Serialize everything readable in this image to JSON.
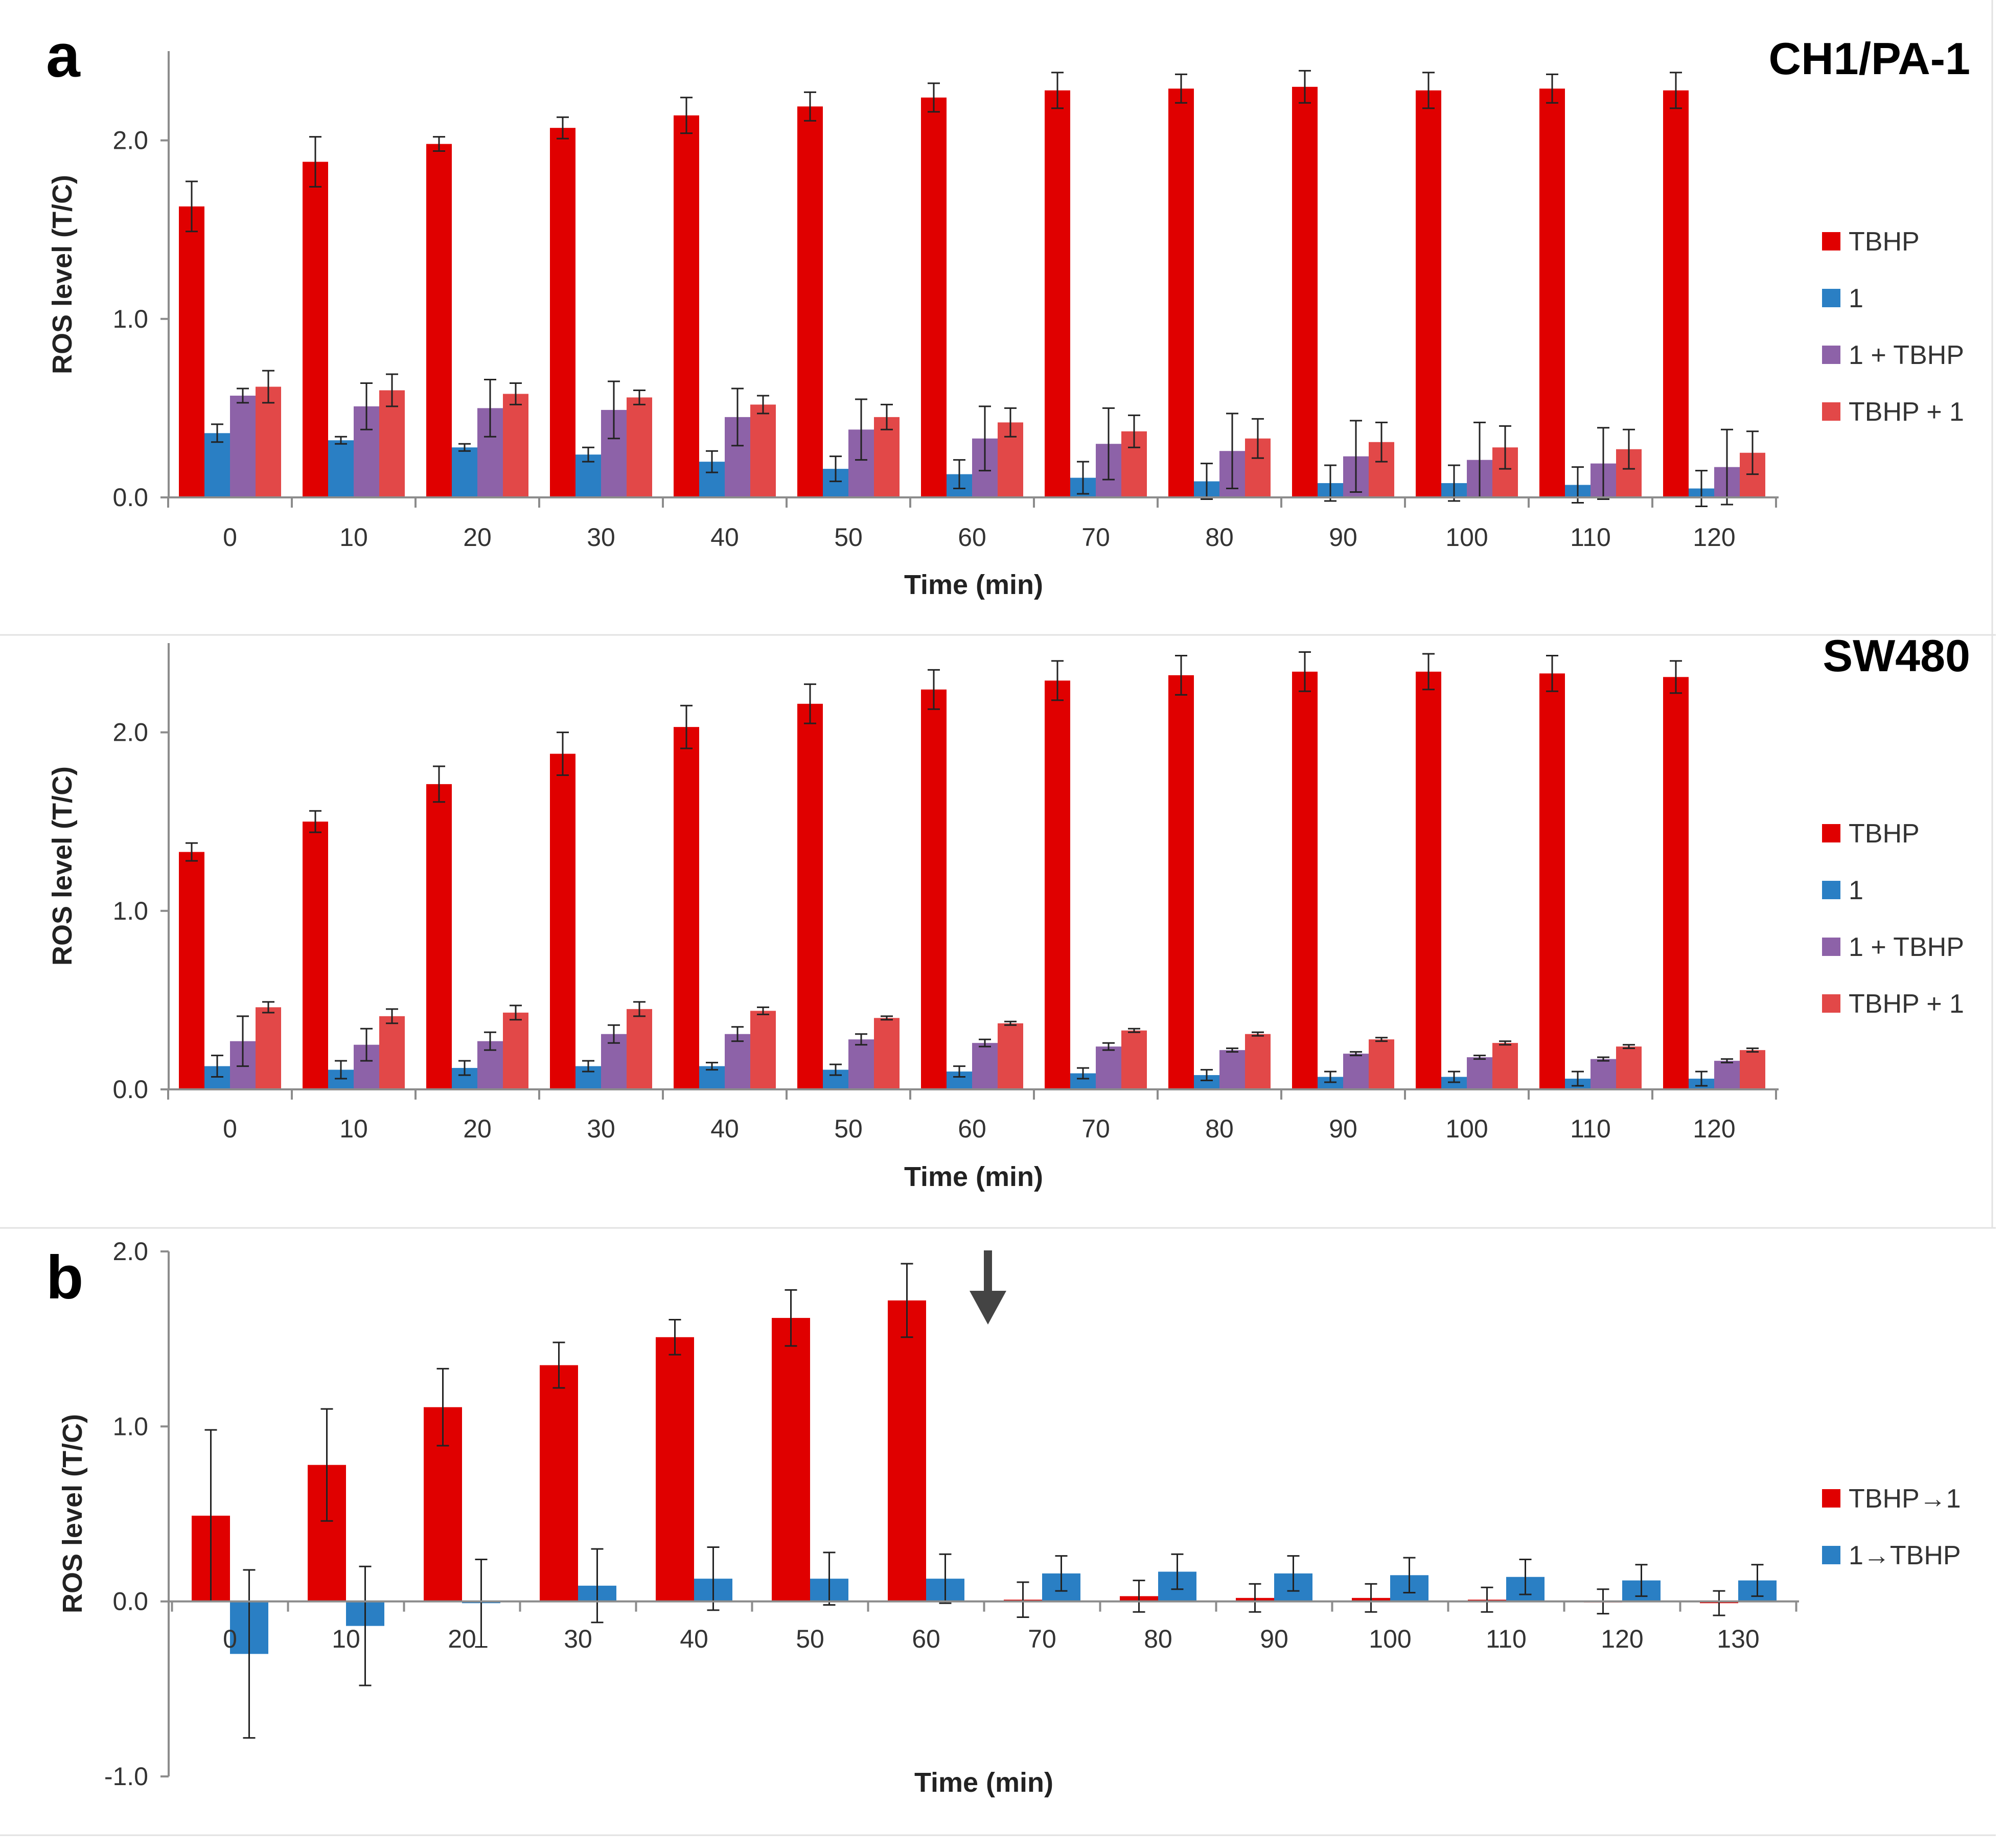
{
  "figure": {
    "panel_a_letter": "a",
    "panel_b_letter": "b"
  },
  "colors": {
    "TBHP": "#e00000",
    "1": "#2a7fc4",
    "1 + TBHP": "#8d62a8",
    "TBHP + 1": "#e24848",
    "TBHP→1": "#e00000",
    "1→TBHP": "#2a7fc4"
  },
  "chart_data": [
    {
      "type": "bar",
      "panel": "a",
      "title": "CH1/PA-1",
      "xlabel": "Time (min)",
      "ylabel": "ROS level (T/C)",
      "ylim": [
        0,
        2.5
      ],
      "yticks": [
        0.0,
        1.0,
        2.0
      ],
      "ytick_labels": [
        "0.0",
        "1.0",
        "2.0"
      ],
      "grid": false,
      "legend_position": "right",
      "categories": [
        "0",
        "10",
        "20",
        "30",
        "40",
        "50",
        "60",
        "70",
        "80",
        "90",
        "100",
        "110",
        "120"
      ],
      "series": [
        {
          "name": "TBHP",
          "values": [
            1.63,
            1.88,
            1.98,
            2.07,
            2.14,
            2.19,
            2.24,
            2.28,
            2.29,
            2.3,
            2.28,
            2.29,
            2.28
          ],
          "errors": [
            0.14,
            0.14,
            0.04,
            0.06,
            0.1,
            0.08,
            0.08,
            0.1,
            0.08,
            0.09,
            0.1,
            0.08,
            0.1
          ]
        },
        {
          "name": "1",
          "values": [
            0.36,
            0.32,
            0.28,
            0.24,
            0.2,
            0.16,
            0.13,
            0.11,
            0.09,
            0.08,
            0.08,
            0.07,
            0.05
          ],
          "errors": [
            0.05,
            0.02,
            0.02,
            0.04,
            0.06,
            0.07,
            0.08,
            0.09,
            0.1,
            0.1,
            0.1,
            0.1,
            0.1
          ]
        },
        {
          "name": "1 + TBHP",
          "values": [
            0.57,
            0.51,
            0.5,
            0.49,
            0.45,
            0.38,
            0.33,
            0.3,
            0.26,
            0.23,
            0.21,
            0.19,
            0.17
          ],
          "errors": [
            0.04,
            0.13,
            0.16,
            0.16,
            0.16,
            0.17,
            0.18,
            0.2,
            0.21,
            0.2,
            0.21,
            0.2,
            0.21
          ]
        },
        {
          "name": "TBHP + 1",
          "values": [
            0.62,
            0.6,
            0.58,
            0.56,
            0.52,
            0.45,
            0.42,
            0.37,
            0.33,
            0.31,
            0.28,
            0.27,
            0.25
          ],
          "errors": [
            0.09,
            0.09,
            0.06,
            0.04,
            0.05,
            0.07,
            0.08,
            0.09,
            0.11,
            0.11,
            0.12,
            0.11,
            0.12
          ]
        }
      ]
    },
    {
      "type": "bar",
      "panel": "a",
      "title": "SW480",
      "xlabel": "Time (min)",
      "ylabel": "ROS level (T/C)",
      "ylim": [
        0,
        2.5
      ],
      "yticks": [
        0.0,
        1.0,
        2.0
      ],
      "ytick_labels": [
        "0.0",
        "1.0",
        "2.0"
      ],
      "grid": false,
      "legend_position": "right",
      "categories": [
        "0",
        "10",
        "20",
        "30",
        "40",
        "50",
        "60",
        "70",
        "80",
        "90",
        "100",
        "110",
        "120"
      ],
      "series": [
        {
          "name": "TBHP",
          "values": [
            1.33,
            1.5,
            1.71,
            1.88,
            2.03,
            2.16,
            2.24,
            2.29,
            2.32,
            2.34,
            2.34,
            2.33,
            2.31
          ],
          "errors": [
            0.05,
            0.06,
            0.1,
            0.12,
            0.12,
            0.11,
            0.11,
            0.11,
            0.11,
            0.11,
            0.1,
            0.1,
            0.09
          ]
        },
        {
          "name": "1",
          "values": [
            0.13,
            0.11,
            0.12,
            0.13,
            0.13,
            0.11,
            0.1,
            0.09,
            0.08,
            0.07,
            0.07,
            0.06,
            0.06
          ],
          "errors": [
            0.06,
            0.05,
            0.04,
            0.03,
            0.02,
            0.03,
            0.03,
            0.03,
            0.03,
            0.03,
            0.03,
            0.04,
            0.04
          ]
        },
        {
          "name": "1 + TBHP",
          "values": [
            0.27,
            0.25,
            0.27,
            0.31,
            0.31,
            0.28,
            0.26,
            0.24,
            0.22,
            0.2,
            0.18,
            0.17,
            0.16
          ],
          "errors": [
            0.14,
            0.09,
            0.05,
            0.05,
            0.04,
            0.03,
            0.02,
            0.02,
            0.01,
            0.01,
            0.01,
            0.01,
            0.01
          ]
        },
        {
          "name": "TBHP + 1",
          "values": [
            0.46,
            0.41,
            0.43,
            0.45,
            0.44,
            0.4,
            0.37,
            0.33,
            0.31,
            0.28,
            0.26,
            0.24,
            0.22
          ],
          "errors": [
            0.03,
            0.04,
            0.04,
            0.04,
            0.02,
            0.01,
            0.01,
            0.01,
            0.01,
            0.01,
            0.01,
            0.01,
            0.01
          ]
        }
      ]
    },
    {
      "type": "bar",
      "panel": "b",
      "title": "",
      "xlabel": "Time (min)",
      "ylabel": "ROS level (T/C)",
      "ylim": [
        -1.0,
        2.0
      ],
      "yticks": [
        -1.0,
        0.0,
        1.0,
        2.0
      ],
      "ytick_labels": [
        "-1.0",
        "0.0",
        "1.0",
        "2.0"
      ],
      "grid": false,
      "legend_position": "right",
      "annotation": {
        "type": "down-arrow",
        "between": [
          "60",
          "70"
        ]
      },
      "categories": [
        "0",
        "10",
        "20",
        "30",
        "40",
        "50",
        "60",
        "70",
        "80",
        "90",
        "100",
        "110",
        "120",
        "130"
      ],
      "series": [
        {
          "name": "TBHP→1",
          "values": [
            0.49,
            0.78,
            1.11,
            1.35,
            1.51,
            1.62,
            1.72,
            0.01,
            0.03,
            0.02,
            0.02,
            0.01,
            0.0,
            -0.01
          ],
          "errors": [
            0.49,
            0.32,
            0.22,
            0.13,
            0.1,
            0.16,
            0.21,
            0.1,
            0.09,
            0.08,
            0.08,
            0.07,
            0.07,
            0.07
          ]
        },
        {
          "name": "1→TBHP",
          "values": [
            -0.3,
            -0.14,
            -0.01,
            0.09,
            0.13,
            0.13,
            0.13,
            0.16,
            0.17,
            0.16,
            0.15,
            0.14,
            0.12,
            0.12
          ],
          "errors": [
            0.48,
            0.34,
            0.25,
            0.21,
            0.18,
            0.15,
            0.14,
            0.1,
            0.1,
            0.1,
            0.1,
            0.1,
            0.09,
            0.09
          ]
        }
      ]
    }
  ]
}
